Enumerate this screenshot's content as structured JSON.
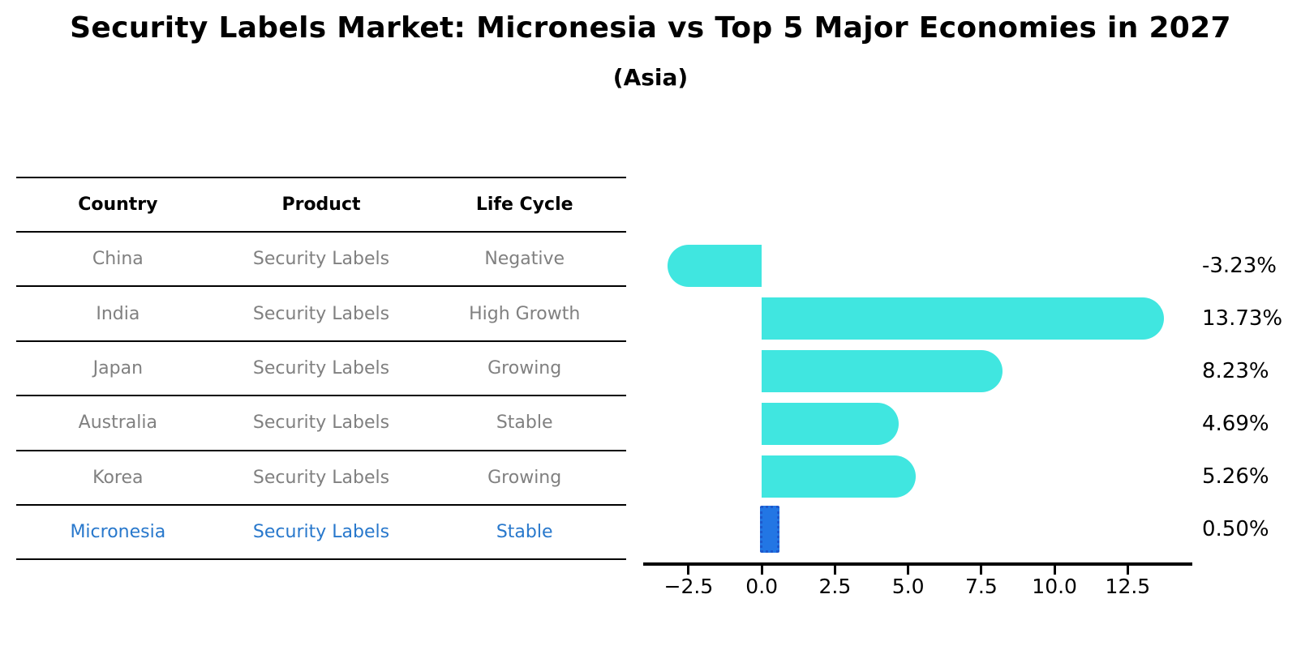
{
  "title": "Security Labels Market: Micronesia vs Top 5 Major Economies in 2027",
  "subtitle": "(Asia)",
  "table": {
    "headers": [
      "Country",
      "Product",
      "Life Cycle"
    ],
    "rows": [
      {
        "country": "China",
        "product": "Security Labels",
        "life_cycle": "Negative",
        "highlight": false
      },
      {
        "country": "India",
        "product": "Security Labels",
        "life_cycle": "High Growth",
        "highlight": false
      },
      {
        "country": "Japan",
        "product": "Security Labels",
        "life_cycle": "Growing",
        "highlight": false
      },
      {
        "country": "Australia",
        "product": "Security Labels",
        "life_cycle": "Stable",
        "highlight": false
      },
      {
        "country": "Korea",
        "product": "Security Labels",
        "life_cycle": "Growing",
        "highlight": false
      },
      {
        "country": "Micronesia",
        "product": "Security Labels",
        "life_cycle": "Stable",
        "highlight": true
      }
    ]
  },
  "chart_data": {
    "type": "bar",
    "orientation": "horizontal",
    "title": "Security Labels Market: Micronesia vs Top 5 Major Economies in 2027 (Asia)",
    "categories": [
      "China",
      "India",
      "Japan",
      "Australia",
      "Korea",
      "Micronesia"
    ],
    "values": [
      -3.23,
      13.73,
      8.23,
      4.69,
      5.26,
      0.5
    ],
    "value_labels": [
      "-3.23%",
      "13.73%",
      "8.23%",
      "4.69%",
      "5.26%",
      "0.50%"
    ],
    "x_ticks": [
      "−2.5",
      "0.0",
      "2.5",
      "5.0",
      "7.5",
      "10.0",
      "12.5"
    ],
    "x_tick_values": [
      -2.5,
      0.0,
      2.5,
      5.0,
      7.5,
      10.0,
      12.5
    ],
    "xlim": [
      -4.05,
      14.65
    ],
    "xlabel": "",
    "ylabel": "",
    "grid": false,
    "legend": false,
    "highlighted_category": "Micronesia"
  },
  "colors": {
    "bar": "#40E6E0",
    "highlight_bar_fill": "#2276E4",
    "highlight_bar_border": "#1E58CC",
    "highlight_text": "#2878CC",
    "table_text": "#808080",
    "title_text": "#000000"
  }
}
